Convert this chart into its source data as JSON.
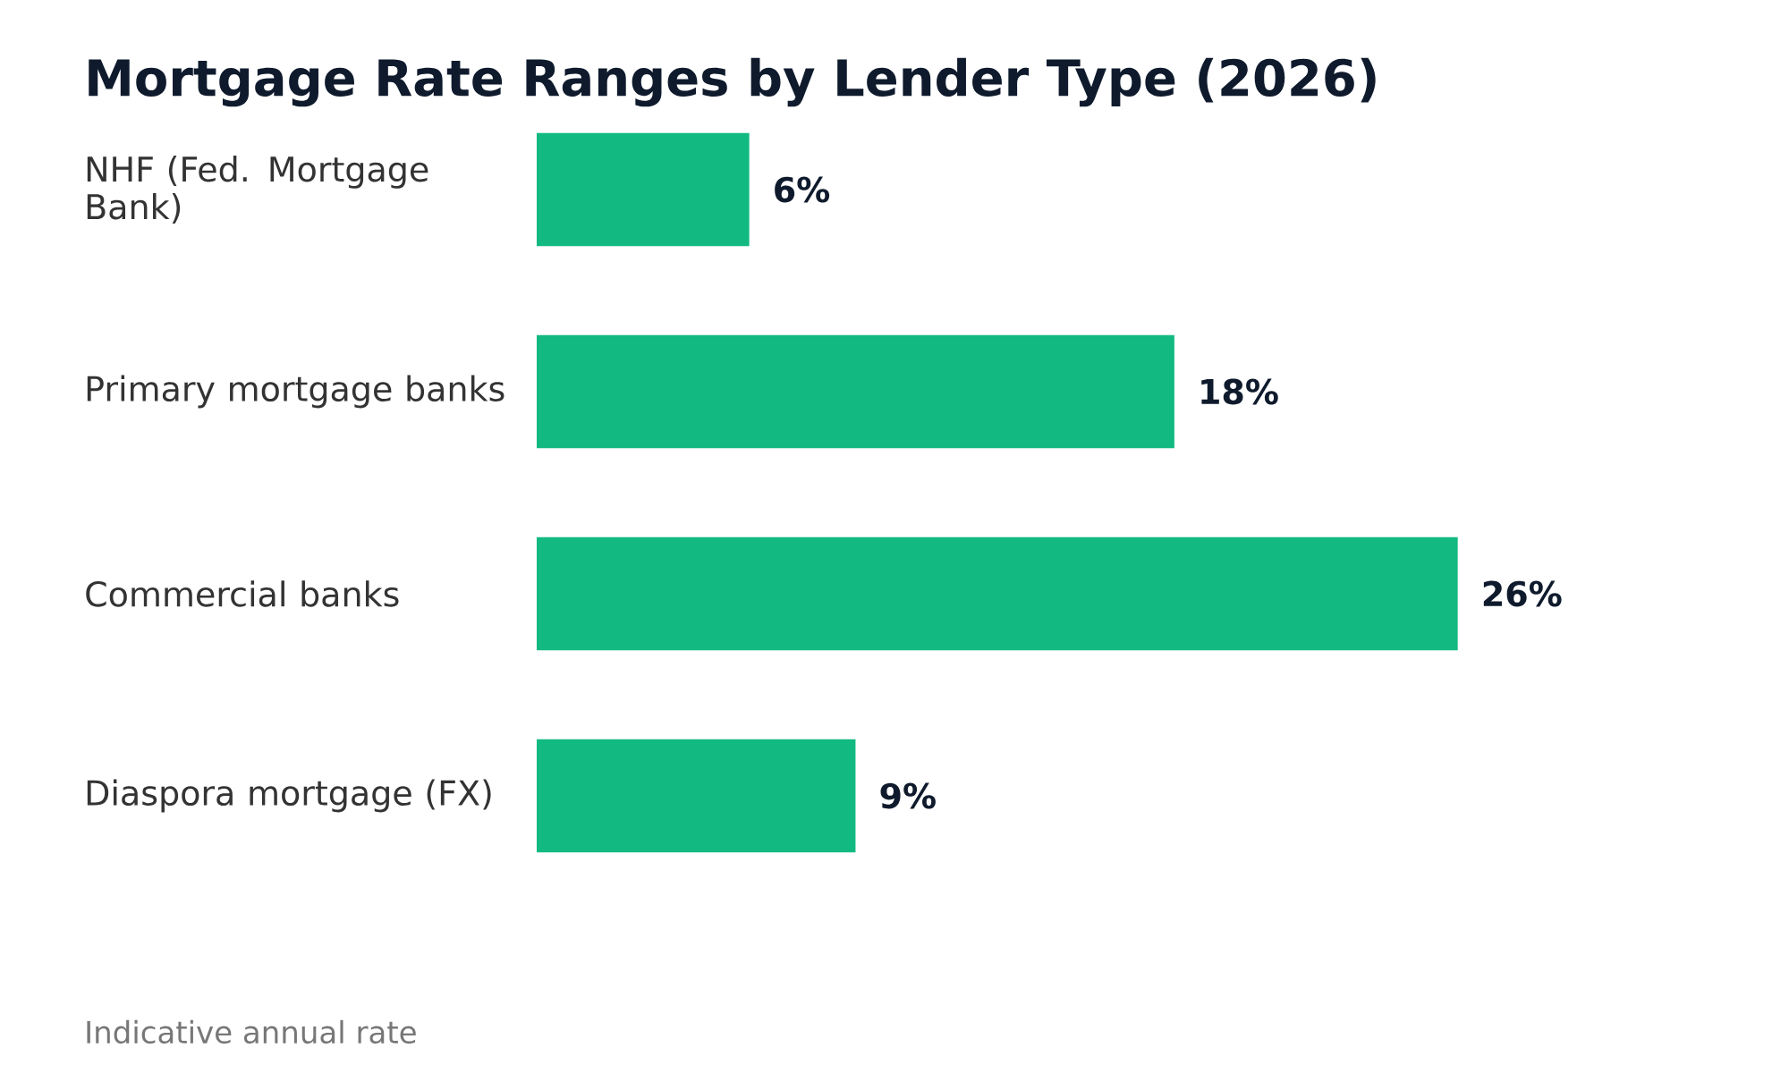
{
  "chart_data": {
    "type": "bar",
    "orientation": "horizontal",
    "title": "Mortgage Rate Ranges by Lender Type (2026)",
    "categories": [
      "NHF (Fed. Mortgage Bank)",
      "Primary mortgage banks",
      "Commercial banks",
      "Diaspora mortgage (FX)"
    ],
    "values": [
      6,
      18,
      26,
      9
    ],
    "value_labels": [
      "6%",
      "18%",
      "26%",
      "9%"
    ],
    "color": "#12b981",
    "annotations": [
      "Indicative annual rate"
    ]
  }
}
